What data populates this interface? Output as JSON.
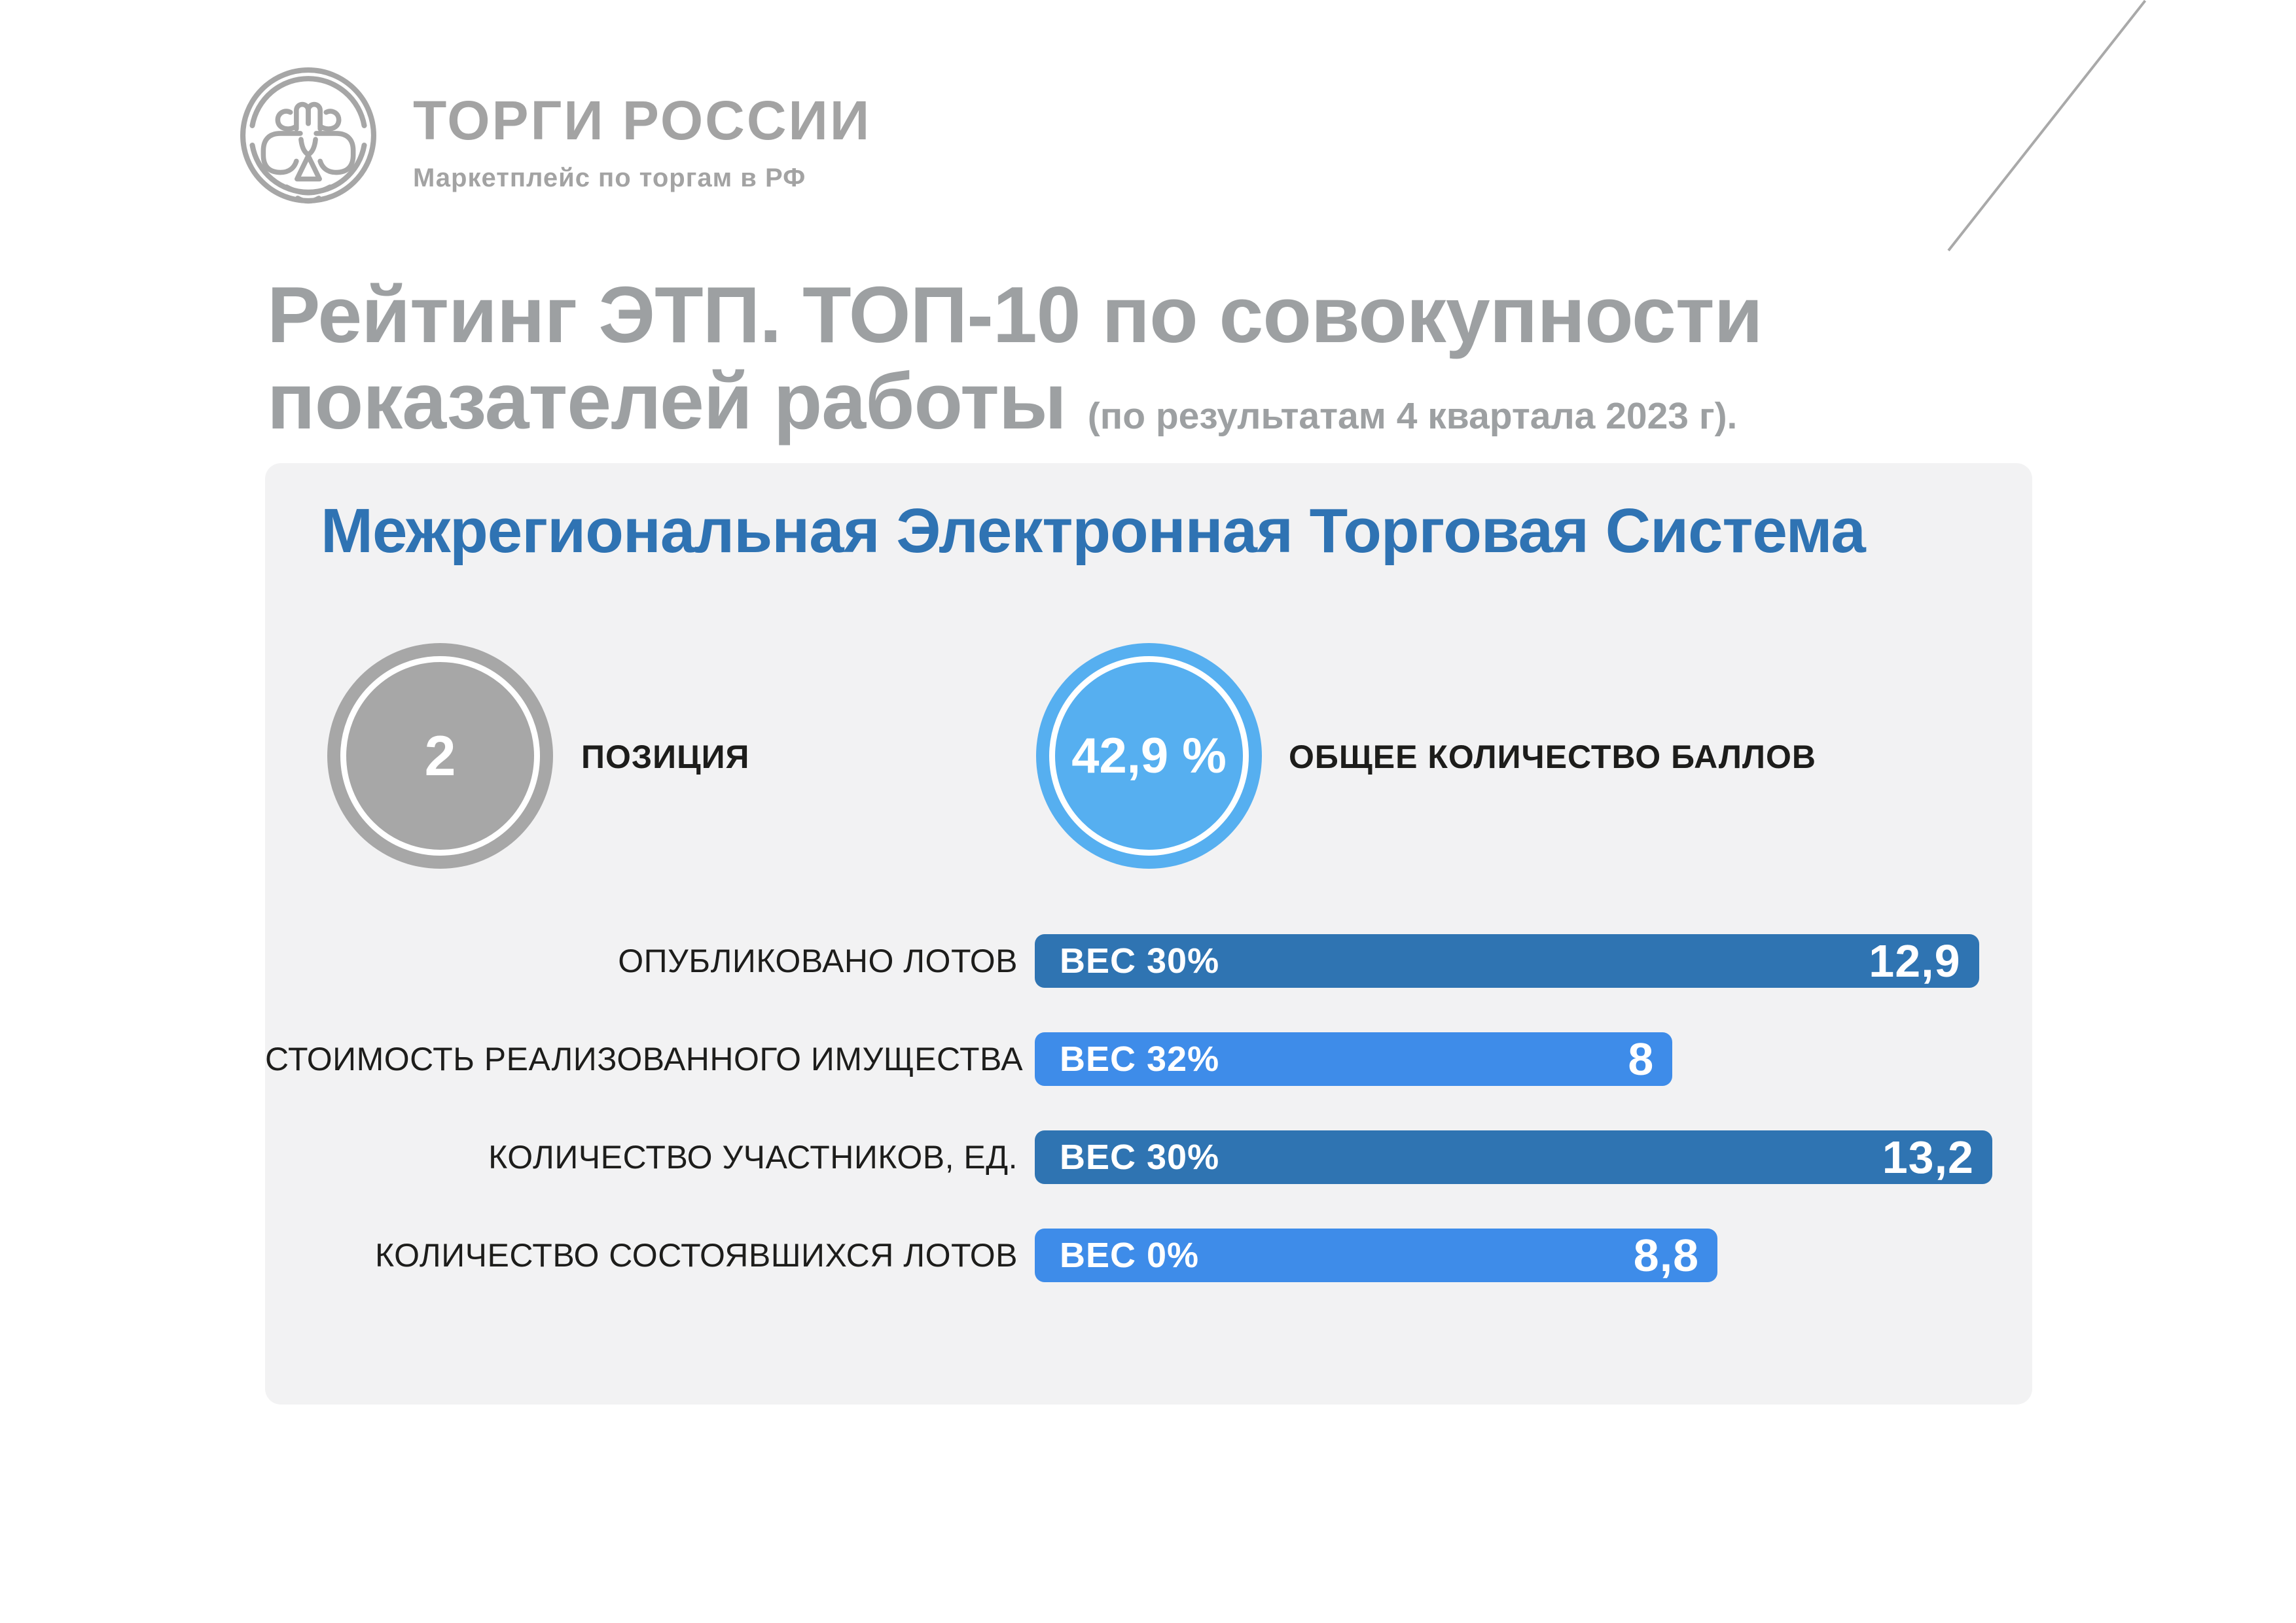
{
  "logo": {
    "title": "ТОРГИ РОССИИ",
    "subtitle": "Маркетплейс по торгам в РФ"
  },
  "header": {
    "title_line1": "Рейтинг ЭТП. ТОП-10 по совокупности",
    "title_line2": "показателей работы",
    "title_note": "(по результатам 4 квартала 2023 г)."
  },
  "card": {
    "title": "Межрегиональная Электронная Торговая Система",
    "position": {
      "value": "2",
      "label": "ПОЗИЦИЯ"
    },
    "score": {
      "value": "42,9 %",
      "label": "ОБЩЕЕ КОЛИЧЕСТВО БАЛЛОВ"
    }
  },
  "colors": {
    "dark_bar": "#2f74b2",
    "light_bar": "#3e8ce9",
    "score_circle": "#56aff0",
    "position_circle": "#a7a7a7",
    "card_bg": "#f2f2f3",
    "title_gray": "#9da0a2",
    "card_title_blue": "#2f73b3",
    "logo_gray": "#a3a3a3"
  },
  "chart_data": {
    "type": "bar",
    "orientation": "horizontal",
    "title": "Межрегиональная Электронная Торговая Система",
    "position_rank": "2",
    "total_score": "42,9 %",
    "categories": [
      "ОПУБЛИКОВАНО ЛОТОВ",
      "СТОИМОСТЬ РЕАЛИЗОВАННОГО ИМУЩЕСТВА",
      "КОЛИЧЕСТВО УЧАСТНИКОВ, ЕД.",
      "КОЛИЧЕСТВО СОСТОЯВШИХСЯ ЛОТОВ"
    ],
    "values": [
      12.9,
      8,
      13.2,
      8.8
    ],
    "value_labels": [
      "12,9",
      "8",
      "13,2",
      "8,8"
    ],
    "weight_labels": [
      "ВЕС 30%",
      "ВЕС 32%",
      "ВЕС 30%",
      "ВЕС 0%"
    ],
    "bar_colors": [
      "#2f74b2",
      "#3e8ce9",
      "#2f74b2",
      "#3e8ce9"
    ],
    "bar_width_pct": [
      98.6,
      66.6,
      100,
      71.3
    ],
    "xlim": [
      0,
      13.2
    ],
    "grid": false,
    "legend": false
  }
}
